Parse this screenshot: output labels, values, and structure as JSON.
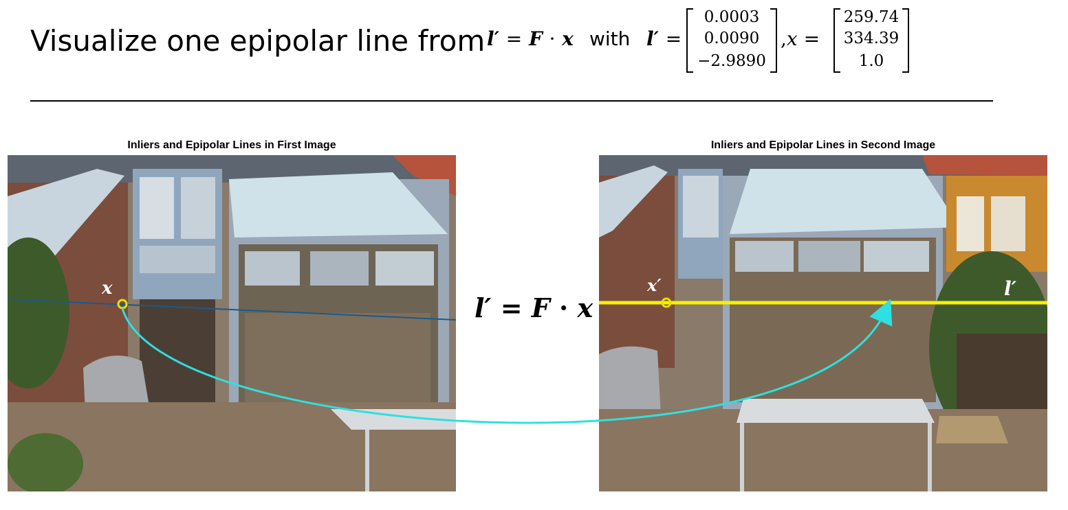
{
  "title": "Visualize one epipolar line from",
  "equation": {
    "lprime": "l′",
    "equals": "=",
    "F": "F",
    "dot": "·",
    "x": "x",
    "with": "with",
    "comma": ",",
    "lprime_vector": [
      "0.0003",
      "0.0090",
      "−2.9890"
    ],
    "x_vector": [
      "259.74",
      "334.39",
      "1.0"
    ]
  },
  "left_image": {
    "caption": "Inliers and Epipolar Lines in First Image",
    "point_label": "x"
  },
  "right_image": {
    "caption": "Inliers and Epipolar Lines in Second Image",
    "point_label": "x′",
    "line_label": "l′"
  },
  "center_equation": {
    "lprime": "l′",
    "equals": "=",
    "F": "F",
    "dot": "·",
    "x": "x"
  },
  "colors": {
    "epipolar_line": "#f5f200",
    "point_marker": "#e8e000",
    "arrow": "#2ee0e0",
    "blue_line": "#1a5a8a"
  }
}
